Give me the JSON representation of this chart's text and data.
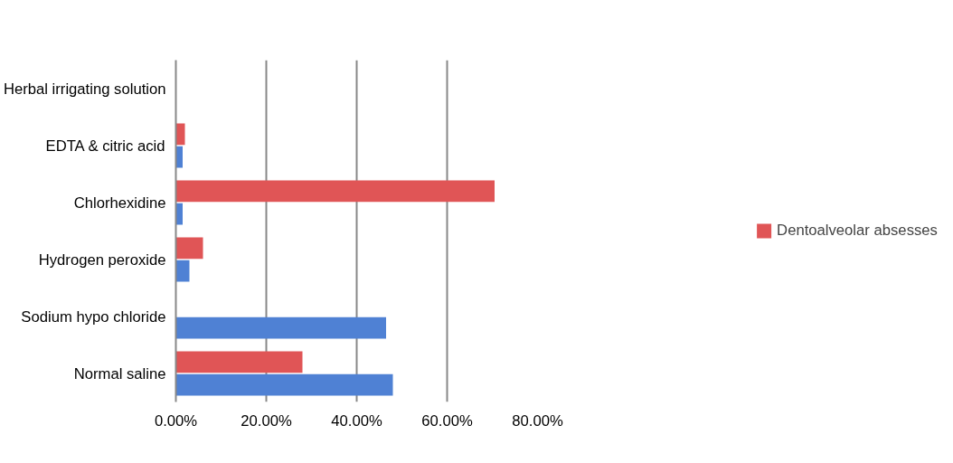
{
  "chart_data": {
    "type": "bar",
    "orientation": "horizontal",
    "categories": [
      "Herbal irrigating solution",
      "EDTA & citric acid",
      "Chlorhexidine",
      "Hydrogen peroxide",
      "Sodium hypo chloride",
      "Normal saline"
    ],
    "series": [
      {
        "color": "#4f81d4",
        "values": [
          0,
          1.5,
          1.5,
          3,
          46.5,
          48
        ]
      },
      {
        "name": "Dentoalveolar absesses",
        "color": "#e05556",
        "values": [
          0,
          2,
          70.5,
          6,
          0,
          28
        ]
      }
    ],
    "xlim": [
      0,
      80
    ],
    "xticks": [
      {
        "value": 0,
        "label": "0.00%"
      },
      {
        "value": 20,
        "label": "20.00%"
      },
      {
        "value": 40,
        "label": "40.00%"
      },
      {
        "value": 60,
        "label": "60.00%"
      },
      {
        "value": 80,
        "label": "80.00%"
      }
    ],
    "grid": "x",
    "legend": "right"
  }
}
